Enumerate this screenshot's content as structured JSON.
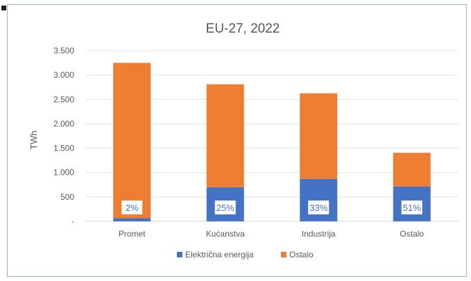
{
  "chart_data": {
    "type": "bar",
    "stacked": true,
    "title": "EU-27, 2022",
    "ylabel": "TWh",
    "xlabel": "",
    "ylim": [
      0,
      3500
    ],
    "yticks": [
      0,
      500,
      1000,
      1500,
      2000,
      2500,
      3000,
      3500
    ],
    "ytick_labels": [
      "-",
      "500",
      "1.000",
      "1.500",
      "2.000",
      "2.500",
      "3.000",
      "3.500"
    ],
    "grid": true,
    "legend_position": "bottom",
    "categories": [
      "Promet",
      "Kućanstva",
      "Industrija",
      "Ostalo"
    ],
    "series": [
      {
        "name": "Električna energija",
        "color": "#4472c4",
        "values": [
          65,
          700,
          870,
          715
        ]
      },
      {
        "name": "Ostalo",
        "color": "#ed7d31",
        "values": [
          3185,
          2110,
          1755,
          690
        ]
      }
    ],
    "annotations": [
      "2%",
      "25%",
      "33%",
      "51%"
    ]
  }
}
